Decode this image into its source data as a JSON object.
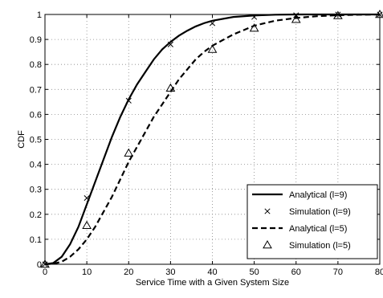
{
  "chart_data": {
    "type": "line",
    "title": "",
    "xlabel": "Service Time with a Given System Size",
    "ylabel": "CDF",
    "xlim": [
      0,
      80
    ],
    "ylim": [
      0,
      1
    ],
    "xticks": [
      0,
      10,
      20,
      30,
      40,
      50,
      60,
      70,
      80
    ],
    "yticks": [
      0,
      0.1,
      0.2,
      0.3,
      0.4,
      0.5,
      0.6,
      0.7,
      0.8,
      0.9,
      1
    ],
    "ytick_labels": [
      "0",
      "0.1",
      "0.2",
      "0.3",
      "0.4",
      "0.5",
      "0.6",
      "0.7",
      "0.8",
      "0.9",
      "1"
    ],
    "grid": true,
    "legend_position": "bottom-right",
    "series": [
      {
        "name": "Analytical (l=9)",
        "style": "solid",
        "color": "#000000",
        "x": [
          0,
          2,
          4,
          6,
          8,
          10,
          12,
          14,
          16,
          18,
          20,
          22,
          24,
          26,
          28,
          30,
          32,
          34,
          36,
          38,
          40,
          45,
          50,
          55,
          60,
          70,
          80
        ],
        "y": [
          0,
          0.005,
          0.03,
          0.08,
          0.15,
          0.24,
          0.33,
          0.42,
          0.51,
          0.59,
          0.66,
          0.72,
          0.77,
          0.82,
          0.86,
          0.89,
          0.915,
          0.935,
          0.952,
          0.965,
          0.975,
          0.99,
          0.996,
          0.999,
          1,
          1,
          1
        ]
      },
      {
        "name": "Simulation (l=9)",
        "style": "marker-x",
        "color": "#000000",
        "x": [
          0,
          10,
          20,
          30,
          40,
          50,
          60,
          70,
          80
        ],
        "y": [
          0,
          0.265,
          0.655,
          0.88,
          0.965,
          0.99,
          0.997,
          1,
          1
        ]
      },
      {
        "name": "Analytical (l=5)",
        "style": "dashed",
        "color": "#000000",
        "x": [
          0,
          2,
          4,
          6,
          8,
          10,
          12,
          14,
          16,
          18,
          20,
          22,
          24,
          26,
          28,
          30,
          32,
          34,
          36,
          38,
          40,
          45,
          50,
          55,
          60,
          65,
          70,
          75,
          80
        ],
        "y": [
          0,
          0.002,
          0.01,
          0.03,
          0.06,
          0.1,
          0.15,
          0.21,
          0.27,
          0.34,
          0.41,
          0.47,
          0.53,
          0.59,
          0.64,
          0.69,
          0.74,
          0.78,
          0.82,
          0.85,
          0.875,
          0.92,
          0.955,
          0.975,
          0.986,
          0.993,
          0.997,
          0.999,
          1
        ]
      },
      {
        "name": "Simulation (l=5)",
        "style": "marker-triangle",
        "color": "#000000",
        "x": [
          0,
          10,
          20,
          30,
          40,
          50,
          60,
          70,
          80
        ],
        "y": [
          0,
          0.155,
          0.445,
          0.705,
          0.86,
          0.945,
          0.98,
          0.995,
          1
        ]
      }
    ]
  }
}
